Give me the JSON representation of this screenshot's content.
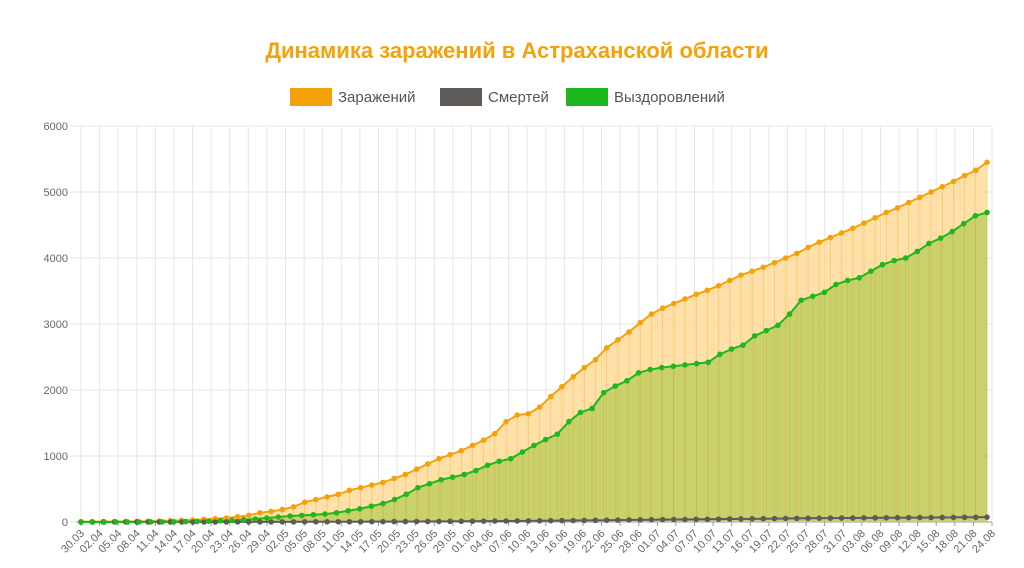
{
  "chart_data": {
    "type": "line",
    "title": "Динамика заражений в Астраханской области",
    "xlabel": "",
    "ylabel": "",
    "ylim": [
      0,
      6000
    ],
    "yticks": [
      0,
      1000,
      2000,
      3000,
      4000,
      5000,
      6000
    ],
    "legend_position": "top-center",
    "grid": true,
    "colors": {
      "title": "#F5A20A",
      "infected": "#F5A20A",
      "infected_fill": "#FFD58C",
      "deaths": "#5E5A58",
      "recovered": "#1DB81D",
      "recovered_fill": "#C6CF6A",
      "grid": "#E6E6E6",
      "axis": "#999999"
    },
    "x_tick_labels": [
      "30.03",
      "02.04",
      "05.04",
      "08.04",
      "11.04",
      "14.04",
      "17.04",
      "20.04",
      "23.04",
      "26.04",
      "29.04",
      "02.05",
      "05.05",
      "08.05",
      "11.05",
      "14.05",
      "17.05",
      "20.05",
      "23.05",
      "26.05",
      "29.05",
      "01.06",
      "04.06",
      "07.06",
      "10.06",
      "13.06",
      "16.06",
      "19.06",
      "22.06",
      "25.06",
      "28.06",
      "01.07",
      "04.07",
      "07.07",
      "10.07",
      "13.07",
      "16.07",
      "19.07",
      "22.07",
      "25.07",
      "28.07",
      "31.07",
      "03.08",
      "06.08",
      "09.08",
      "12.08",
      "15.08",
      "18.08",
      "21.08",
      "24.08"
    ],
    "series": [
      {
        "name": "Заражений",
        "key": "infected",
        "values": [
          5,
          5,
          6,
          7,
          8,
          10,
          12,
          15,
          20,
          25,
          30,
          40,
          50,
          60,
          80,
          100,
          140,
          160,
          190,
          230,
          300,
          340,
          380,
          420,
          480,
          520,
          560,
          600,
          660,
          720,
          800,
          880,
          960,
          1020,
          1080,
          1160,
          1240,
          1340,
          1520,
          1620,
          1640,
          1740,
          1900,
          2050,
          2200,
          2340,
          2460,
          2640,
          2760,
          2880,
          3020,
          3150,
          3240,
          3310,
          3380,
          3450,
          3510,
          3580,
          3660,
          3740,
          3800,
          3860,
          3930,
          4000,
          4070,
          4160,
          4240,
          4310,
          4380,
          4450,
          4530,
          4610,
          4690,
          4760,
          4840,
          4920,
          5000,
          5080,
          5160,
          5250,
          5330,
          5450
        ]
      },
      {
        "name": "Смертей",
        "key": "deaths",
        "values": [
          0,
          0,
          0,
          0,
          0,
          0,
          0,
          0,
          0,
          0,
          0,
          0,
          0,
          1,
          1,
          1,
          1,
          2,
          2,
          2,
          3,
          3,
          3,
          4,
          4,
          4,
          5,
          5,
          6,
          6,
          7,
          8,
          9,
          10,
          11,
          12,
          13,
          14,
          15,
          16,
          17,
          18,
          20,
          21,
          22,
          24,
          25,
          27,
          29,
          31,
          33,
          35,
          36,
          37,
          38,
          40,
          41,
          43,
          45,
          46,
          48,
          50,
          52,
          54,
          55,
          57,
          58,
          59,
          60,
          61,
          62,
          63,
          64,
          65,
          66,
          67,
          68,
          69,
          70,
          71,
          72,
          73
        ]
      },
      {
        "name": "Выздоровлений",
        "key": "recovered",
        "values": [
          0,
          0,
          0,
          0,
          0,
          0,
          1,
          2,
          3,
          5,
          8,
          12,
          18,
          25,
          35,
          45,
          60,
          75,
          90,
          100,
          110,
          120,
          140,
          170,
          200,
          240,
          280,
          340,
          420,
          520,
          580,
          640,
          680,
          720,
          780,
          860,
          920,
          960,
          1060,
          1160,
          1250,
          1330,
          1520,
          1660,
          1720,
          1960,
          2060,
          2140,
          2260,
          2310,
          2340,
          2360,
          2380,
          2400,
          2420,
          2540,
          2620,
          2680,
          2820,
          2900,
          2980,
          3150,
          3360,
          3420,
          3480,
          3600,
          3660,
          3700,
          3800,
          3900,
          3960,
          4000,
          4100,
          4220,
          4300,
          4400,
          4520,
          4640,
          4690
        ]
      }
    ]
  }
}
